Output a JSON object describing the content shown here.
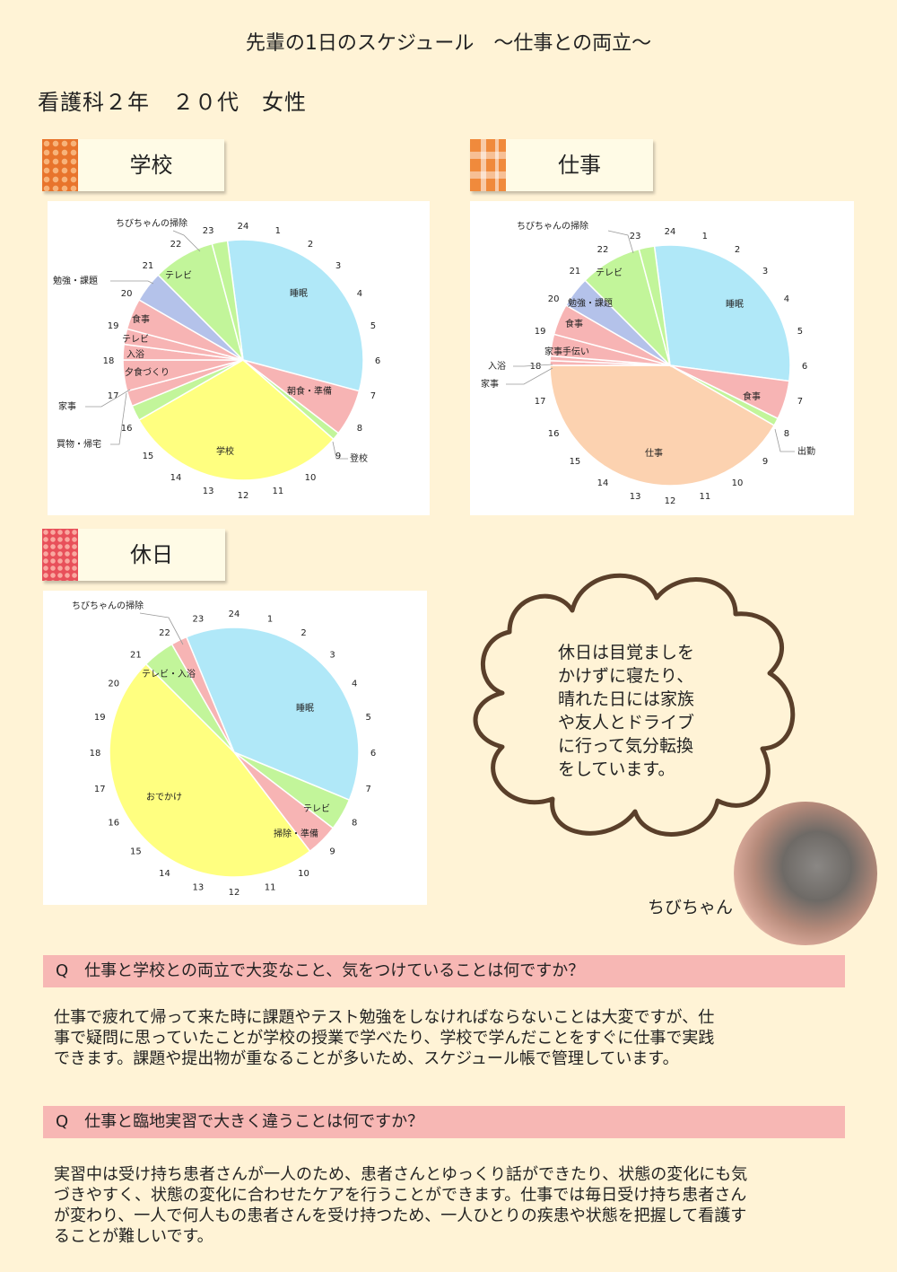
{
  "header": {
    "title": "先輩の1日のスケジュール　～仕事との両立～",
    "subtitle": "看護科２年　２０代　女性"
  },
  "tags": {
    "school": "学校",
    "work": "仕事",
    "holiday": "休日"
  },
  "colors": {
    "sleep": "#b0e8f8",
    "meal": "#f7b4b4",
    "tv": "#c2f59a",
    "study": "#b4c2ea",
    "school": "#ffff80",
    "work": "#fcd2b0",
    "outing": "#ffff80"
  },
  "chart_data": [
    {
      "type": "pie",
      "name": "学校",
      "slices": [
        {
          "label": "睡眠",
          "start": 23.5,
          "end": 7,
          "color": "#b0e8f8"
        },
        {
          "label": "朝食・準備",
          "start": 7,
          "end": 8.5,
          "color": "#f7b4b4"
        },
        {
          "label": "登校",
          "start": 8.5,
          "end": 8.75,
          "color": "#c2f59a"
        },
        {
          "label": "学校",
          "start": 8.75,
          "end": 16,
          "color": "#ffff80"
        },
        {
          "label": "買物・帰宅",
          "start": 16,
          "end": 16.5,
          "color": "#c2f59a"
        },
        {
          "label": "家事",
          "start": 16.5,
          "end": 17,
          "color": "#f7b4b4"
        },
        {
          "label": "夕食づくり",
          "start": 17,
          "end": 18,
          "color": "#f7b4b4"
        },
        {
          "label": "入浴",
          "start": 18,
          "end": 18.5,
          "color": "#f7b4b4"
        },
        {
          "label": "テレビ",
          "start": 18.5,
          "end": 19,
          "color": "#f7b4b4"
        },
        {
          "label": "食事",
          "start": 19,
          "end": 20,
          "color": "#f7b4b4"
        },
        {
          "label": "勉強・課題",
          "start": 20,
          "end": 21,
          "color": "#b4c2ea"
        },
        {
          "label": "テレビ",
          "start": 21,
          "end": 23,
          "color": "#c2f59a"
        },
        {
          "label": "ちびちゃんの掃除",
          "start": 23,
          "end": 23.5,
          "color": "#c2f59a"
        }
      ],
      "labels": {
        "inside": [
          {
            "text": "睡眠"
          },
          {
            "text": "朝食・準備"
          },
          {
            "text": "学校"
          },
          {
            "text": "テレビ"
          },
          {
            "text": "食事"
          },
          {
            "text": "テレビ"
          },
          {
            "text": "入浴"
          },
          {
            "text": "夕食づくり"
          }
        ],
        "outside": [
          {
            "text": "ちびちゃんの掃除"
          },
          {
            "text": "勉強・課題"
          },
          {
            "text": "家事"
          },
          {
            "text": "買物・帰宅"
          },
          {
            "text": "登校"
          }
        ]
      }
    },
    {
      "type": "pie",
      "name": "仕事",
      "slices": [
        {
          "label": "睡眠",
          "start": 23.5,
          "end": 6.5,
          "color": "#b0e8f8"
        },
        {
          "label": "食事",
          "start": 6.5,
          "end": 7.75,
          "color": "#f7b4b4"
        },
        {
          "label": "出勤",
          "start": 7.75,
          "end": 8,
          "color": "#c2f59a"
        },
        {
          "label": "仕事",
          "start": 8,
          "end": 18,
          "color": "#fcd2b0"
        },
        {
          "label": "家事",
          "start": 18,
          "end": 18.15,
          "color": "#f7b4b4"
        },
        {
          "label": "入浴",
          "start": 18.15,
          "end": 18.3,
          "color": "#f7b4b4"
        },
        {
          "label": "家事手伝い",
          "start": 18.3,
          "end": 19,
          "color": "#f7b4b4"
        },
        {
          "label": "食事",
          "start": 19,
          "end": 20,
          "color": "#f7b4b4"
        },
        {
          "label": "勉強・課題",
          "start": 20,
          "end": 21,
          "color": "#b4c2ea"
        },
        {
          "label": "テレビ",
          "start": 21,
          "end": 23,
          "color": "#c2f59a"
        },
        {
          "label": "ちびちゃんの掃除",
          "start": 23,
          "end": 23.5,
          "color": "#c2f59a"
        }
      ],
      "labels": {
        "inside": [
          {
            "text": "睡眠"
          },
          {
            "text": "食事"
          },
          {
            "text": "仕事"
          },
          {
            "text": "テレビ"
          },
          {
            "text": "勉強・課題"
          },
          {
            "text": "食事"
          },
          {
            "text": "家事手伝い"
          }
        ],
        "outside": [
          {
            "text": "ちびちゃんの掃除"
          },
          {
            "text": "入浴"
          },
          {
            "text": "家事"
          },
          {
            "text": "出勤"
          }
        ]
      }
    },
    {
      "type": "pie",
      "name": "休日",
      "slices": [
        {
          "label": "睡眠",
          "start": 22.5,
          "end": 7.5,
          "color": "#b0e8f8"
        },
        {
          "label": "テレビ",
          "start": 7.5,
          "end": 8.5,
          "color": "#c2f59a"
        },
        {
          "label": "掃除・準備",
          "start": 8.5,
          "end": 9.5,
          "color": "#f7b4b4"
        },
        {
          "label": "おでかけ",
          "start": 9.5,
          "end": 21,
          "color": "#ffff80"
        },
        {
          "label": "テレビ・入浴",
          "start": 21,
          "end": 22,
          "color": "#c2f59a"
        },
        {
          "label": "ちびちゃんの掃除",
          "start": 22,
          "end": 22.5,
          "color": "#f7b4b4"
        }
      ],
      "labels": {
        "inside": [
          {
            "text": "睡眠"
          },
          {
            "text": "テレビ"
          },
          {
            "text": "掃除・準備"
          },
          {
            "text": "おでかけ"
          },
          {
            "text": "テレビ・入浴"
          }
        ],
        "outside": [
          {
            "text": "ちびちゃんの掃除"
          }
        ]
      }
    }
  ],
  "cloud": {
    "lines": [
      "休日は目覚ましを",
      "かけずに寝たり、",
      "晴れた日には家族",
      "や友人とドライブ",
      "に行って気分転換",
      "をしています。"
    ],
    "pet_name": "ちびちゃん"
  },
  "qa": [
    {
      "question": "Q　仕事と学校との両立で大変なこと、気をつけていることは何ですか？",
      "answer_lines": [
        "仕事で疲れて帰って来た時に課題やテスト勉強をしなければならないことは大変ですが、仕",
        "事で疑問に思っていたことが学校の授業で学べたり、学校で学んだことをすぐに仕事で実践",
        "できます。課題や提出物が重なることが多いため、スケジュール帳で管理しています。"
      ]
    },
    {
      "question": "Q　仕事と臨地実習で大きく違うことは何ですか？",
      "answer_lines": [
        "実習中は受け持ち患者さんが一人のため、患者さんとゆっくり話ができたり、状態の変化にも気",
        "づきやすく、状態の変化に合わせたケアを行うことができます。仕事では毎日受け持ち患者さん",
        "が変わり、一人で何人もの患者さんを受け持つため、一人ひとりの疾患や状態を把握して看護す",
        "ることが難しいです。"
      ]
    }
  ]
}
